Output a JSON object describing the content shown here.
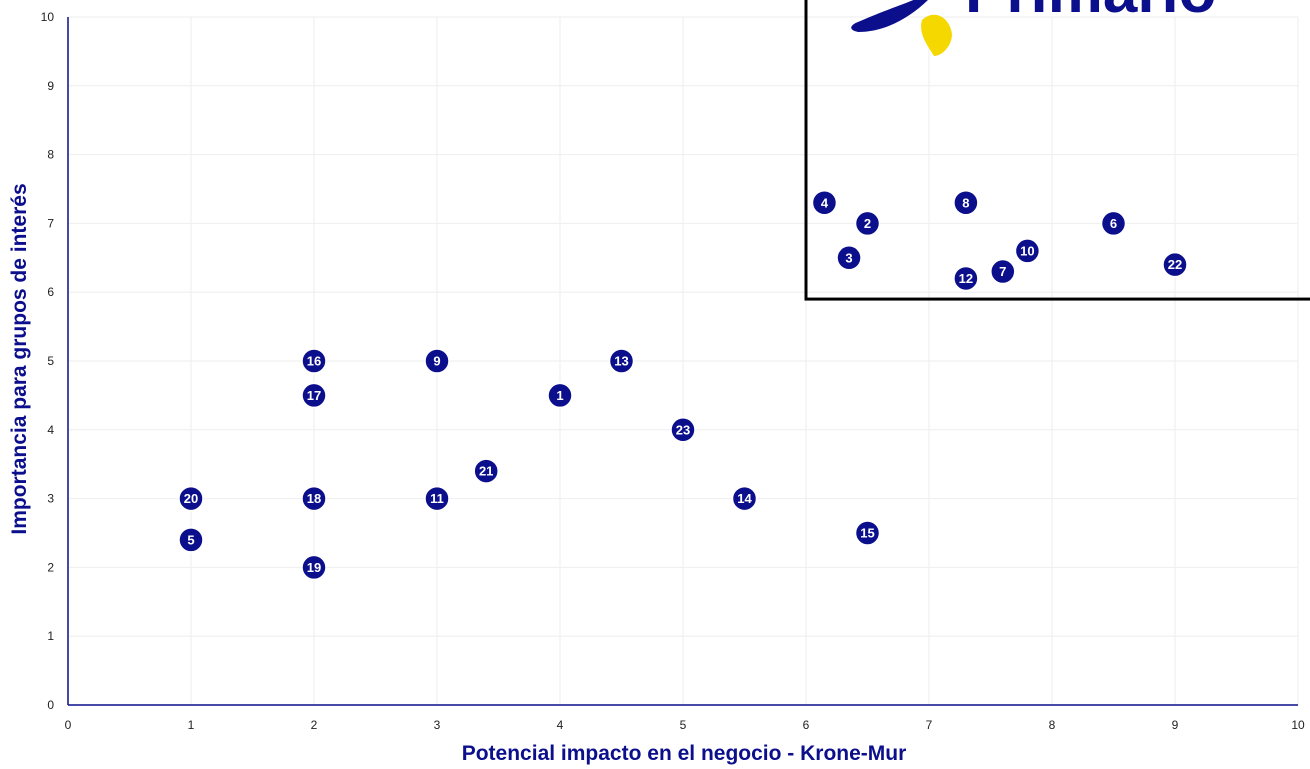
{
  "chart_data": {
    "type": "scatter",
    "xlabel": "Potencial impacto en el negocio - Krone-Mur",
    "ylabel": "Importancia para grupos de interés",
    "xlim": [
      0,
      10
    ],
    "ylim": [
      0,
      10
    ],
    "x_ticks": [
      "0",
      "1",
      "2",
      "3",
      "4",
      "5",
      "6",
      "7",
      "8",
      "9",
      "10"
    ],
    "y_ticks": [
      "0",
      "1",
      "2",
      "3",
      "4",
      "5",
      "6",
      "7",
      "8",
      "9",
      "10"
    ],
    "grid": true,
    "points": [
      {
        "label": "1",
        "x": 4.0,
        "y": 4.5
      },
      {
        "label": "2",
        "x": 6.5,
        "y": 7.0
      },
      {
        "label": "3",
        "x": 6.35,
        "y": 6.5
      },
      {
        "label": "4",
        "x": 6.15,
        "y": 7.3
      },
      {
        "label": "5",
        "x": 1.0,
        "y": 2.4
      },
      {
        "label": "6",
        "x": 8.5,
        "y": 7.0
      },
      {
        "label": "7",
        "x": 7.6,
        "y": 6.3
      },
      {
        "label": "8",
        "x": 7.3,
        "y": 7.3
      },
      {
        "label": "9",
        "x": 3.0,
        "y": 5.0
      },
      {
        "label": "10",
        "x": 7.8,
        "y": 6.6
      },
      {
        "label": "11",
        "x": 3.0,
        "y": 3.0
      },
      {
        "label": "12",
        "x": 7.3,
        "y": 6.2
      },
      {
        "label": "13",
        "x": 4.5,
        "y": 5.0
      },
      {
        "label": "14",
        "x": 5.5,
        "y": 3.0
      },
      {
        "label": "15",
        "x": 6.5,
        "y": 2.5
      },
      {
        "label": "16",
        "x": 2.0,
        "y": 5.0
      },
      {
        "label": "17",
        "x": 2.0,
        "y": 4.5
      },
      {
        "label": "18",
        "x": 2.0,
        "y": 3.0
      },
      {
        "label": "19",
        "x": 2.0,
        "y": 2.0
      },
      {
        "label": "20",
        "x": 1.0,
        "y": 3.0
      },
      {
        "label": "21",
        "x": 3.4,
        "y": 3.4
      },
      {
        "label": "22",
        "x": 9.0,
        "y": 6.4
      },
      {
        "label": "23",
        "x": 5.0,
        "y": 4.0
      }
    ],
    "highlight_region": {
      "x_min": 6.0,
      "x_max": 10.0,
      "y_min": 5.9,
      "y_max": 10.0
    },
    "colors": {
      "point": "#0b0f8c",
      "axis_title": "#0b0f8c",
      "grid": "#eeeeee",
      "region": "#000000",
      "logo_yellow": "#f5d800"
    }
  },
  "logo": {
    "text": "Primario"
  }
}
